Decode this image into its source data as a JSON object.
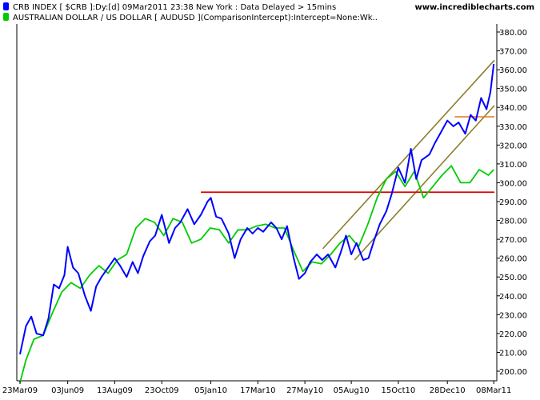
{
  "header": {
    "site": "www.incrediblecharts.com",
    "legend": [
      {
        "text": "CRB INDEX [ $CRB ]:Dy:[d]  09Mar2011 23:38 New York : Data Delayed > 15mins",
        "color": "#0000ff"
      },
      {
        "text": "AUSTRALIAN DOLLAR / US DOLLAR [ AUDUSD ](ComparisonIntercept):Intercept=None:Wk..",
        "color": "#00cc00"
      }
    ]
  },
  "chart_data": {
    "type": "line",
    "x_tick_labels": [
      "23Mar09",
      "03Jun09",
      "13Aug09",
      "23Oct09",
      "05Jan10",
      "17Mar10",
      "27May10",
      "05Aug10",
      "15Oct10",
      "28Dec10",
      "08Mar11"
    ],
    "y_ticks": [
      200,
      210,
      220,
      230,
      240,
      250,
      260,
      270,
      280,
      290,
      300,
      310,
      320,
      330,
      340,
      350,
      360,
      370,
      380
    ],
    "y_tick_labels": [
      "200.00",
      "210.00",
      "220.00",
      "230.00",
      "240.00",
      "250.00",
      "260.00",
      "270.00",
      "280.00",
      "290.00",
      "300.00",
      "310.00",
      "320.00",
      "330.00",
      "340.00",
      "350.00",
      "360.00",
      "370.00",
      "380.00"
    ],
    "ylim": [
      186,
      387
    ],
    "grid": false,
    "colors": {
      "crb": "#0000ff",
      "aud": "#00cc00",
      "channel": "#8b7d2a",
      "support": "#dd0000",
      "resistance": "#e07820"
    },
    "series": [
      {
        "name": "CRB INDEX [ $CRB ]",
        "x": [
          "23Mar09",
          "01Apr09",
          "09Apr09",
          "17Apr09",
          "27Apr09",
          "05May09",
          "13May09",
          "21May09",
          "29May09",
          "03Jun09",
          "11Jun09",
          "19Jun09",
          "29Jun09",
          "08Jul09",
          "16Jul09",
          "24Jul09",
          "03Aug09",
          "13Aug09",
          "21Aug09",
          "31Aug09",
          "09Sep09",
          "17Sep09",
          "25Sep09",
          "05Oct09",
          "13Oct09",
          "23Oct09",
          "03Nov09",
          "12Nov09",
          "20Nov09",
          "01Dec09",
          "11Dec09",
          "21Dec09",
          "31Dec09",
          "05Jan10",
          "13Jan10",
          "21Jan10",
          "01Feb10",
          "10Feb10",
          "19Feb10",
          "01Mar10",
          "09Mar10",
          "17Mar10",
          "25Mar10",
          "06Apr10",
          "14Apr10",
          "22Apr10",
          "30Apr10",
          "10May10",
          "18May10",
          "27May10",
          "04Jun10",
          "14Jun10",
          "22Jun10",
          "01Jul10",
          "12Jul10",
          "20Jul10",
          "28Jul10",
          "05Aug10",
          "13Aug10",
          "23Aug10",
          "31Aug10",
          "09Sep10",
          "17Sep10",
          "27Sep10",
          "05Oct10",
          "15Oct10",
          "25Oct10",
          "03Nov10",
          "11Nov10",
          "19Nov10",
          "01Dec10",
          "09Dec10",
          "17Dec10",
          "28Dec10",
          "06Jan11",
          "14Jan11",
          "24Jan11",
          "01Feb11",
          "09Feb11",
          "17Feb11",
          "25Feb11",
          "03Mar11",
          "08Mar11"
        ],
        "values": [
          209,
          224,
          229,
          220,
          219,
          228,
          246,
          244,
          251,
          266,
          255,
          252,
          240,
          232,
          245,
          250,
          255,
          260,
          256,
          250,
          258,
          252,
          261,
          269,
          272,
          283,
          268,
          276,
          279,
          286,
          278,
          283,
          290,
          292,
          282,
          281,
          273,
          260,
          270,
          276,
          273,
          276,
          274,
          279,
          276,
          270,
          277,
          260,
          249,
          252,
          258,
          262,
          259,
          262,
          255,
          263,
          272,
          262,
          268,
          259,
          260,
          270,
          278,
          285,
          294,
          308,
          300,
          318,
          302,
          312,
          315,
          321,
          326,
          333,
          330,
          332,
          326,
          336,
          333,
          345,
          339,
          348,
          363
        ]
      },
      {
        "name": "AUSTRALIAN DOLLAR / US DOLLAR [ AUDUSD ]",
        "x": [
          "23Mar09",
          "01Apr09",
          "13Apr09",
          "27Apr09",
          "11May09",
          "25May09",
          "08Jun09",
          "22Jun09",
          "06Jul09",
          "20Jul09",
          "03Aug09",
          "17Aug09",
          "31Aug09",
          "14Sep09",
          "28Sep09",
          "12Oct09",
          "26Oct09",
          "09Nov09",
          "23Nov09",
          "07Dec09",
          "21Dec09",
          "04Jan10",
          "18Jan10",
          "01Feb10",
          "15Feb10",
          "01Mar10",
          "15Mar10",
          "29Mar10",
          "12Apr10",
          "26Apr10",
          "10May10",
          "24May10",
          "07Jun10",
          "21Jun10",
          "05Jul10",
          "19Jul10",
          "02Aug10",
          "16Aug10",
          "30Aug10",
          "13Sep10",
          "27Sep10",
          "11Oct10",
          "25Oct10",
          "08Nov10",
          "22Nov10",
          "06Dec10",
          "20Dec10",
          "03Jan11",
          "17Jan11",
          "31Jan11",
          "14Feb11",
          "28Feb11",
          "08Mar11"
        ],
        "values": [
          194,
          206,
          217,
          219,
          231,
          242,
          247,
          244,
          251,
          256,
          252,
          259,
          262,
          276,
          281,
          279,
          272,
          281,
          279,
          268,
          270,
          276,
          275,
          268,
          275,
          275,
          277,
          278,
          276,
          276,
          264,
          253,
          258,
          257,
          262,
          268,
          272,
          266,
          278,
          292,
          302,
          306,
          298,
          306,
          292,
          298,
          304,
          309,
          300,
          300,
          307,
          304,
          307
        ]
      }
    ],
    "annotations": [
      {
        "type": "channel-upper",
        "from": {
          "x": "23Jun10",
          "y": 265
        },
        "to": {
          "x": "09Mar11",
          "y": 365
        }
      },
      {
        "type": "channel-lower",
        "from": {
          "x": "10Aug10",
          "y": 259
        },
        "to": {
          "x": "09Mar11",
          "y": 341
        }
      },
      {
        "type": "support",
        "from": {
          "x": "21Dec09",
          "y": 295
        },
        "to": {
          "x": "09Mar11",
          "y": 295
        }
      },
      {
        "type": "resistance",
        "from": {
          "x": "08Jan11",
          "y": 335
        },
        "to": {
          "x": "09Mar11",
          "y": 335
        }
      }
    ]
  }
}
